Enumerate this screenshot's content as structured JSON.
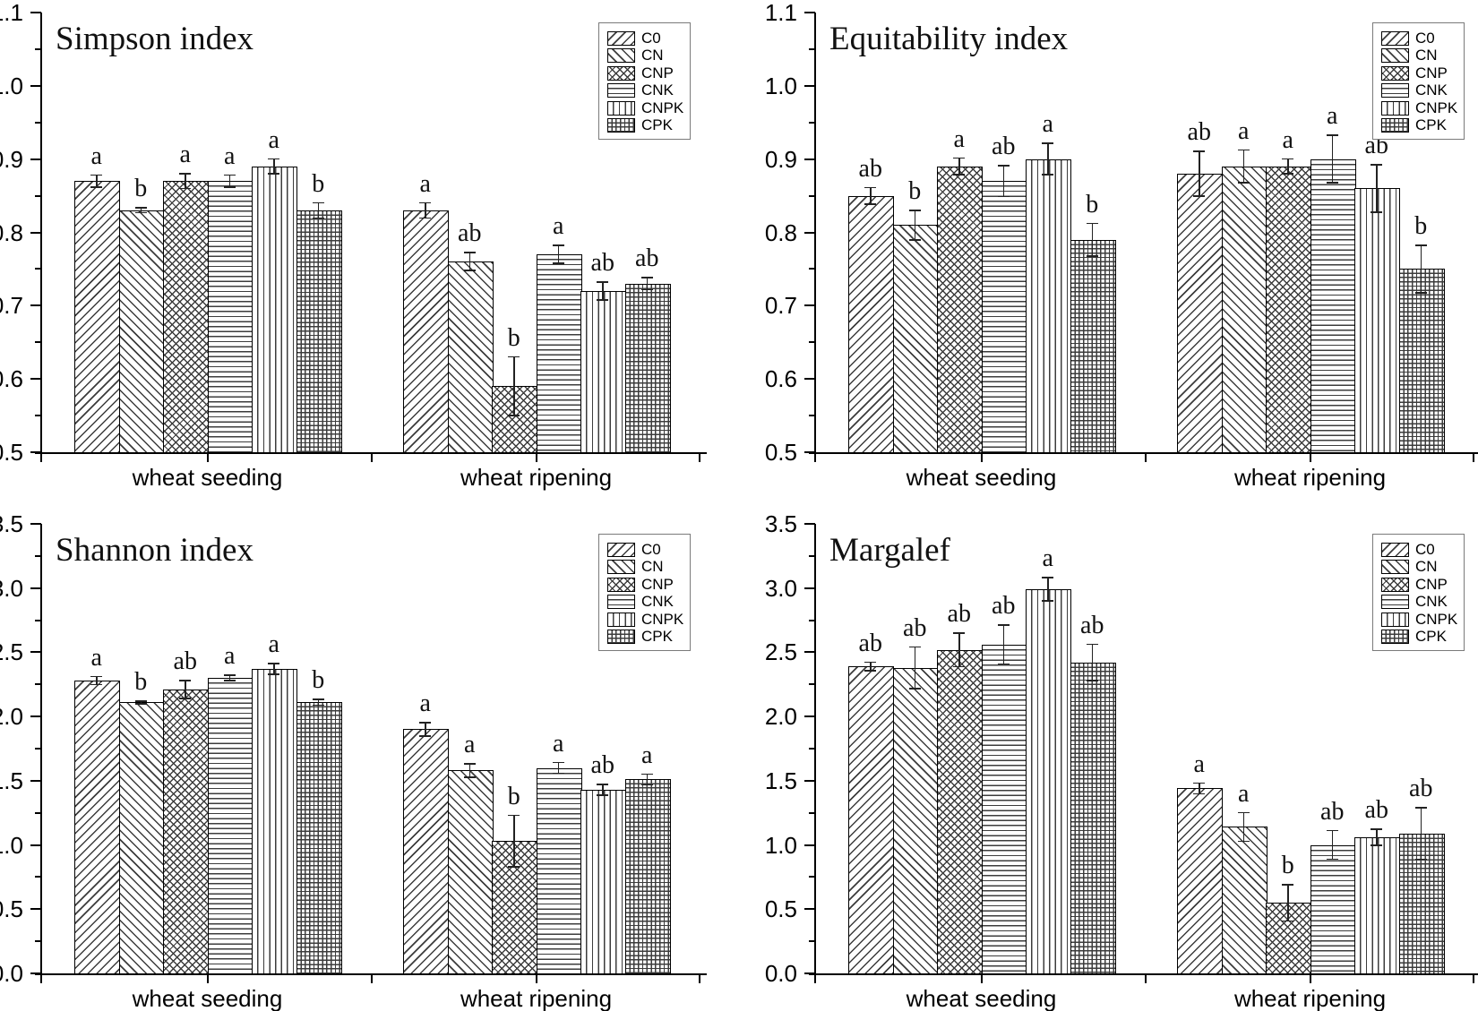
{
  "figure": {
    "description": "Four-panel bar chart of microbial diversity indices under fertilization treatments at two wheat growth stages",
    "categories": [
      "wheat seeding",
      "wheat ripening"
    ],
    "treatments": [
      "C0",
      "CN",
      "CNP",
      "CNK",
      "CNPK",
      "CPK"
    ],
    "pattern_names": [
      "diagonal-forward-hatch",
      "diagonal-back-hatch",
      "diagonal-crosshatch",
      "horizontal-lines",
      "vertical-lines",
      "grid-crosshatch"
    ],
    "colors": {
      "bar_fill": "#ffffff",
      "bar_border": "#000000",
      "hatch": "#3c3c3c",
      "text": "#111111",
      "legend_border": "#7a7a7a"
    }
  },
  "chart_data": [
    {
      "type": "bar",
      "title": "Simpson index",
      "categories": [
        "wheat seeding",
        "wheat ripening"
      ],
      "series_labels": [
        "C0",
        "CN",
        "CNP",
        "CNK",
        "CNPK",
        "CPK"
      ],
      "ylim": [
        0.5,
        1.1
      ],
      "ytick_major": 0.1,
      "ytick_minor": 0.05,
      "ydecimals": 1,
      "grid": false,
      "legend_position": "top-right",
      "groups": [
        {
          "category": "wheat seeding",
          "values": [
            0.87,
            0.83,
            0.87,
            0.87,
            0.89,
            0.83
          ],
          "errors": [
            0.008,
            0.003,
            0.01,
            0.008,
            0.01,
            0.01
          ],
          "sig_letters": [
            "a",
            "b",
            "a",
            "a",
            "a",
            "b"
          ]
        },
        {
          "category": "wheat ripening",
          "values": [
            0.83,
            0.76,
            0.59,
            0.77,
            0.72,
            0.73
          ],
          "errors": [
            0.01,
            0.012,
            0.04,
            0.012,
            0.012,
            0.008
          ],
          "sig_letters": [
            "a",
            "ab",
            "b",
            "a",
            "ab",
            "ab"
          ]
        }
      ]
    },
    {
      "type": "bar",
      "title": "Equitability index",
      "categories": [
        "wheat seeding",
        "wheat ripening"
      ],
      "series_labels": [
        "C0",
        "CN",
        "CNP",
        "CNK",
        "CNPK",
        "CPK"
      ],
      "ylim": [
        0.5,
        1.1
      ],
      "ytick_major": 0.1,
      "ytick_minor": 0.05,
      "ydecimals": 1,
      "grid": false,
      "legend_position": "top-right",
      "groups": [
        {
          "category": "wheat seeding",
          "values": [
            0.85,
            0.81,
            0.89,
            0.87,
            0.9,
            0.79
          ],
          "errors": [
            0.011,
            0.02,
            0.011,
            0.021,
            0.021,
            0.022
          ],
          "sig_letters": [
            "ab",
            "b",
            "a",
            "ab",
            "a",
            "b"
          ]
        },
        {
          "category": "wheat ripening",
          "values": [
            0.88,
            0.89,
            0.89,
            0.9,
            0.86,
            0.75
          ],
          "errors": [
            0.03,
            0.022,
            0.01,
            0.032,
            0.032,
            0.032
          ],
          "sig_letters": [
            "ab",
            "a",
            "a",
            "a",
            "ab",
            "b"
          ]
        }
      ]
    },
    {
      "type": "bar",
      "title": "Shannon index",
      "categories": [
        "wheat seeding",
        "wheat ripening"
      ],
      "series_labels": [
        "C0",
        "CN",
        "CNP",
        "CNK",
        "CNPK",
        "CPK"
      ],
      "ylim": [
        0.0,
        3.5
      ],
      "ytick_major": 0.5,
      "ytick_minor": 0.25,
      "ydecimals": 1,
      "grid": false,
      "legend_position": "top-right",
      "groups": [
        {
          "category": "wheat seeding",
          "values": [
            2.28,
            2.11,
            2.21,
            2.3,
            2.37,
            2.11
          ],
          "errors": [
            0.03,
            0.01,
            0.07,
            0.02,
            0.04,
            0.02
          ],
          "sig_letters": [
            "a",
            "b",
            "ab",
            "a",
            "a",
            "b"
          ]
        },
        {
          "category": "wheat ripening",
          "values": [
            1.9,
            1.58,
            1.03,
            1.6,
            1.43,
            1.51
          ],
          "errors": [
            0.05,
            0.05,
            0.2,
            0.04,
            0.04,
            0.04
          ],
          "sig_letters": [
            "a",
            "a",
            "b",
            "a",
            "ab",
            "a"
          ]
        }
      ]
    },
    {
      "type": "bar",
      "title": "Margalef",
      "categories": [
        "wheat seeding",
        "wheat ripening"
      ],
      "series_labels": [
        "C0",
        "CN",
        "CNP",
        "CNK",
        "CNPK",
        "CPK"
      ],
      "ylim": [
        0.0,
        3.5
      ],
      "ytick_major": 0.5,
      "ytick_minor": 0.25,
      "ydecimals": 1,
      "grid": false,
      "legend_position": "top-right",
      "groups": [
        {
          "category": "wheat seeding",
          "values": [
            2.39,
            2.38,
            2.52,
            2.56,
            2.99,
            2.42
          ],
          "errors": [
            0.03,
            0.16,
            0.13,
            0.15,
            0.09,
            0.14
          ],
          "sig_letters": [
            "ab",
            "ab",
            "ab",
            "ab",
            "a",
            "ab"
          ]
        },
        {
          "category": "wheat ripening",
          "values": [
            1.44,
            1.14,
            0.55,
            1.0,
            1.06,
            1.09
          ],
          "errors": [
            0.04,
            0.11,
            0.14,
            0.11,
            0.06,
            0.2
          ],
          "sig_letters": [
            "a",
            "a",
            "b",
            "ab",
            "ab",
            "ab"
          ]
        }
      ]
    }
  ]
}
